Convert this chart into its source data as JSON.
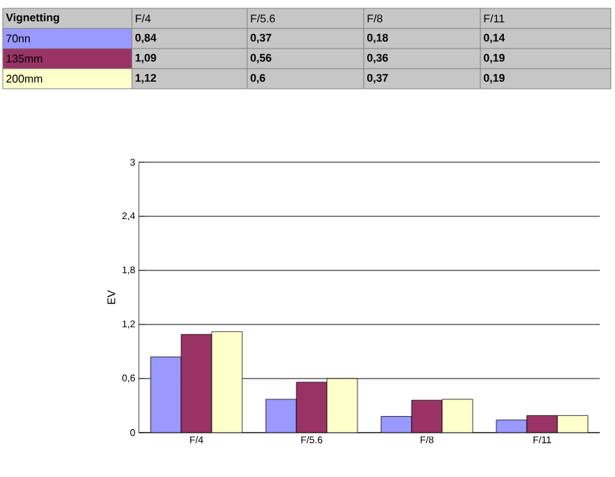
{
  "chart_data": {
    "type": "bar",
    "title": "Vignetting",
    "ylabel": "EV",
    "categories": [
      "F/4",
      "F/5.6",
      "F/8",
      "F/11"
    ],
    "series": [
      {
        "name": "70nn",
        "color": "#9999ff",
        "values": [
          0.84,
          0.37,
          0.18,
          0.14
        ],
        "value_labels": [
          "0,84",
          "0,37",
          "0,18",
          "0,14"
        ]
      },
      {
        "name": "135mm",
        "color": "#993366",
        "values": [
          1.09,
          0.56,
          0.36,
          0.19
        ],
        "value_labels": [
          "1,09",
          "0,56",
          "0,36",
          "0,19"
        ]
      },
      {
        "name": "200mm",
        "color": "#ffffcc",
        "values": [
          1.12,
          0.6,
          0.37,
          0.19
        ],
        "value_labels": [
          "1,12",
          "0,6",
          "0,37",
          "0,19"
        ]
      }
    ],
    "ylim": [
      0,
      3
    ],
    "yticks": [
      {
        "value": 0,
        "label": "0"
      },
      {
        "value": 0.6,
        "label": "0,6"
      },
      {
        "value": 1.2,
        "label": "1,2"
      },
      {
        "value": 1.8,
        "label": "1,8"
      },
      {
        "value": 2.4,
        "label": "2,4"
      },
      {
        "value": 3,
        "label": "3"
      }
    ],
    "grid": "y",
    "legend": false
  }
}
